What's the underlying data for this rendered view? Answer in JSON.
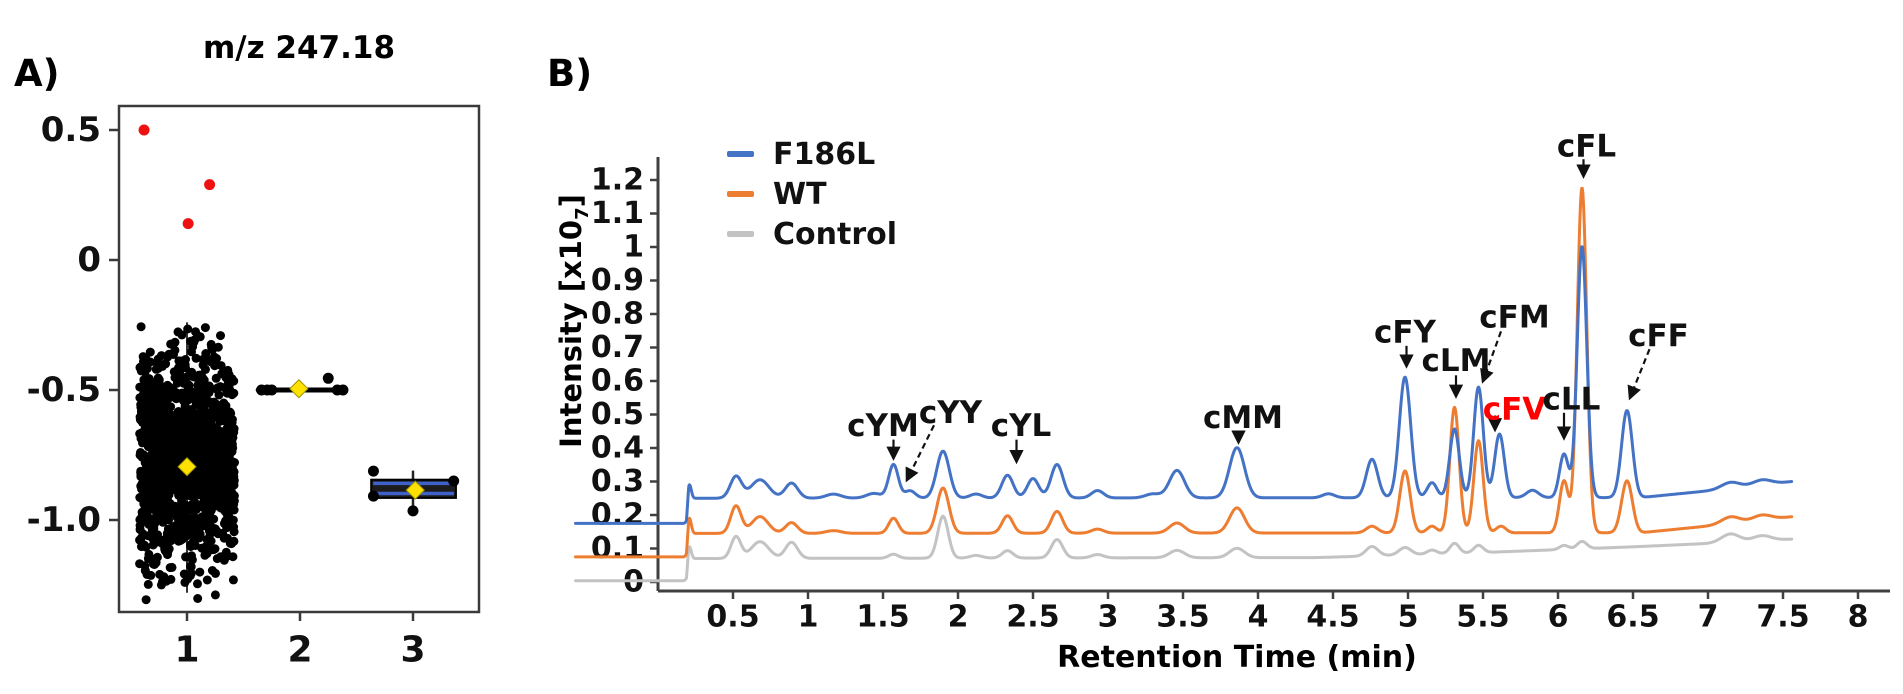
{
  "figure": {
    "panel_a_label": "A)",
    "panel_b_label": "B)",
    "panel_b_ylabel_parts": {
      "main": "Intensity  [x10",
      "sub": "7",
      "close": "]"
    },
    "colors": {
      "panel_border": "#3a3a3a",
      "axis": "#404040",
      "text": "#111111"
    }
  },
  "chart_data": [
    {
      "type": "scatter",
      "title": "m/z 247.18",
      "xlabel": "",
      "ylabel": "",
      "xlim": [
        0.4,
        3.6
      ],
      "ylim": [
        -1.35,
        0.6
      ],
      "grid": false,
      "x_ticks": [
        1,
        2,
        3
      ],
      "x_tick_labels": [
        "1",
        "2",
        "3"
      ],
      "y_ticks": [
        0.5,
        0,
        -0.5,
        -1.0
      ],
      "y_tick_labels": [
        "0.5",
        "0",
        "-0.5",
        "-1.0"
      ],
      "colors": {
        "points": "#000000",
        "outliers": "#ee1111",
        "mean_marker": "#ffe100",
        "box_line": "#3f62c9"
      },
      "groups": [
        {
          "x": 1,
          "style": "jitter_cloud",
          "n_points": 1400,
          "mean": -0.78,
          "sd": 0.2,
          "range": [
            -1.31,
            -0.225
          ],
          "jitter": 0.42,
          "center_line_v": [
            -0.24,
            -1.28
          ],
          "mean_marker": [
            1.0,
            -0.795
          ],
          "outliers_red": [
            [
              0.62,
              0.5
            ],
            [
              1.2,
              0.29
            ],
            [
              1.01,
              0.14
            ]
          ]
        },
        {
          "x": 2,
          "style": "line_cluster",
          "line_v": -0.5,
          "line_x": [
            1.63,
            2.39
          ],
          "points": [
            [
              1.66,
              -0.5
            ],
            [
              1.71,
              -0.5
            ],
            [
              1.75,
              -0.5
            ],
            [
              2.33,
              -0.5
            ],
            [
              2.38,
              -0.5
            ],
            [
              2.25,
              -0.455
            ]
          ],
          "mean_marker": [
            1.99,
            -0.495
          ]
        },
        {
          "x": 3,
          "style": "box",
          "box_x": [
            2.63,
            3.38
          ],
          "box_v": [
            -0.915,
            -0.845
          ],
          "median_lines": [
            -0.859,
            -0.898
          ],
          "whisker_x": 3.0,
          "whisker_v": [
            -0.975,
            -0.81
          ],
          "points": [
            [
              2.65,
              -0.812
            ],
            [
              2.65,
              -0.908
            ],
            [
              3.36,
              -0.85
            ],
            [
              3.0,
              -0.965
            ]
          ],
          "mean_marker": [
            3.02,
            -0.885
          ]
        }
      ]
    },
    {
      "type": "line",
      "title": "",
      "xlabel": "Retention Time (min)",
      "ylabel": "Intensity [x10₇]",
      "xlim": [
        0,
        8.2
      ],
      "ylim": [
        0,
        1.27
      ],
      "grid": false,
      "legend_position": "upper-left-inside",
      "x_ticks": [
        0.5,
        1,
        1.5,
        2,
        2.5,
        3,
        3.5,
        4,
        4.5,
        5,
        5.5,
        6,
        6.5,
        7,
        7.5,
        8
      ],
      "x_tick_labels": [
        "0.5",
        "1",
        "1.5",
        "2",
        "2.5",
        "3",
        "3.5",
        "4",
        "4.5",
        "5",
        "5.5",
        "6",
        "6.5",
        "7",
        "7.5",
        "8"
      ],
      "y_ticks": [
        0,
        0.1,
        0.2,
        0.3,
        0.4,
        0.5,
        0.6,
        0.7,
        0.8,
        0.9,
        1.0,
        1.1,
        1.2
      ],
      "y_tick_labels": [
        "0",
        "0.1",
        "0.2",
        "0.3",
        "0.4",
        "0.5",
        "0.6",
        "0.7",
        "0.8",
        "0.9",
        "1",
        "1.1",
        "1.2"
      ],
      "t_range": [
        -0.55,
        7.56
      ],
      "series": [
        {
          "name": "F186L",
          "color": "#4472C4",
          "baseline": [
            [
              -0.55,
              0.175
            ],
            [
              0.19,
              0.175
            ],
            [
              0.205,
              0.25
            ],
            [
              6.55,
              0.252
            ],
            [
              7.0,
              0.272
            ],
            [
              7.56,
              0.3
            ]
          ],
          "peaks": [
            [
              0.21,
              0.04,
              0.012
            ],
            [
              0.52,
              0.065,
              0.038
            ],
            [
              0.68,
              0.055,
              0.06
            ],
            [
              0.89,
              0.045,
              0.042
            ],
            [
              1.17,
              0.012,
              0.05
            ],
            [
              1.44,
              0.014,
              0.05
            ],
            [
              1.57,
              0.1,
              0.032
            ],
            [
              1.68,
              0.022,
              0.035
            ],
            [
              1.9,
              0.14,
              0.042
            ],
            [
              2.12,
              0.012,
              0.04
            ],
            [
              2.33,
              0.068,
              0.038
            ],
            [
              2.5,
              0.058,
              0.038
            ],
            [
              2.66,
              0.1,
              0.04
            ],
            [
              2.93,
              0.022,
              0.04
            ],
            [
              3.3,
              0.012,
              0.05
            ],
            [
              3.46,
              0.082,
              0.05
            ],
            [
              3.86,
              0.15,
              0.05
            ],
            [
              4.47,
              0.012,
              0.04
            ],
            [
              4.76,
              0.115,
              0.038
            ],
            [
              4.98,
              0.36,
              0.038
            ],
            [
              5.16,
              0.045,
              0.032
            ],
            [
              5.31,
              0.205,
              0.032
            ],
            [
              5.47,
              0.33,
              0.032
            ],
            [
              5.61,
              0.19,
              0.032
            ],
            [
              5.83,
              0.022,
              0.04
            ],
            [
              6.04,
              0.13,
              0.03
            ],
            [
              6.16,
              0.75,
              0.032
            ],
            [
              6.46,
              0.26,
              0.036
            ],
            [
              7.15,
              0.018,
              0.06
            ],
            [
              7.36,
              0.015,
              0.06
            ]
          ]
        },
        {
          "name": "WT",
          "color": "#ED7D31",
          "baseline": [
            [
              -0.55,
              0.075
            ],
            [
              0.19,
              0.075
            ],
            [
              0.205,
              0.145
            ],
            [
              6.55,
              0.147
            ],
            [
              7.0,
              0.167
            ],
            [
              7.56,
              0.195
            ]
          ],
          "peaks": [
            [
              0.21,
              0.045,
              0.012
            ],
            [
              0.52,
              0.082,
              0.035
            ],
            [
              0.68,
              0.05,
              0.055
            ],
            [
              0.89,
              0.032,
              0.04
            ],
            [
              1.17,
              0.008,
              0.05
            ],
            [
              1.57,
              0.045,
              0.032
            ],
            [
              1.9,
              0.135,
              0.04
            ],
            [
              2.33,
              0.052,
              0.036
            ],
            [
              2.66,
              0.065,
              0.038
            ],
            [
              2.93,
              0.012,
              0.04
            ],
            [
              3.46,
              0.03,
              0.05
            ],
            [
              3.86,
              0.075,
              0.05
            ],
            [
              4.76,
              0.02,
              0.038
            ],
            [
              4.98,
              0.185,
              0.035
            ],
            [
              5.16,
              0.02,
              0.032
            ],
            [
              5.31,
              0.375,
              0.031
            ],
            [
              5.47,
              0.275,
              0.031
            ],
            [
              5.62,
              0.02,
              0.032
            ],
            [
              6.04,
              0.155,
              0.03
            ],
            [
              6.16,
              1.03,
              0.032
            ],
            [
              6.46,
              0.155,
              0.036
            ],
            [
              7.15,
              0.02,
              0.06
            ],
            [
              7.36,
              0.015,
              0.06
            ]
          ]
        },
        {
          "name": "Control",
          "color": "#C3C3C3",
          "baseline": [
            [
              -0.55,
              0.004
            ],
            [
              0.19,
              0.004
            ],
            [
              0.205,
              0.07
            ],
            [
              4.4,
              0.073
            ],
            [
              5.5,
              0.088
            ],
            [
              6.5,
              0.105
            ],
            [
              7.0,
              0.115
            ],
            [
              7.56,
              0.128
            ]
          ],
          "peaks": [
            [
              0.21,
              0.035,
              0.012
            ],
            [
              0.52,
              0.065,
              0.033
            ],
            [
              0.68,
              0.05,
              0.058
            ],
            [
              0.89,
              0.048,
              0.04
            ],
            [
              1.57,
              0.012,
              0.032
            ],
            [
              1.9,
              0.125,
              0.035
            ],
            [
              2.12,
              0.008,
              0.04
            ],
            [
              2.33,
              0.022,
              0.036
            ],
            [
              2.66,
              0.055,
              0.038
            ],
            [
              2.93,
              0.01,
              0.04
            ],
            [
              3.46,
              0.022,
              0.05
            ],
            [
              3.86,
              0.028,
              0.05
            ],
            [
              4.76,
              0.028,
              0.04
            ],
            [
              4.98,
              0.022,
              0.04
            ],
            [
              5.16,
              0.012,
              0.032
            ],
            [
              5.31,
              0.03,
              0.031
            ],
            [
              5.47,
              0.022,
              0.031
            ],
            [
              6.04,
              0.012,
              0.03
            ],
            [
              6.16,
              0.022,
              0.032
            ],
            [
              7.15,
              0.025,
              0.06
            ],
            [
              7.36,
              0.015,
              0.06
            ]
          ]
        }
      ],
      "annotations": [
        {
          "label": "cYM",
          "color": "#111111",
          "t": 1.5,
          "v": 0.465,
          "arrow": {
            "t1": 1.57,
            "v1": 0.425,
            "t2": 1.57,
            "v2": 0.37,
            "style": "solid"
          }
        },
        {
          "label": "cYY",
          "color": "#111111",
          "t": 1.95,
          "v": 0.505,
          "arrow": {
            "t1": 1.84,
            "v1": 0.468,
            "t2": 1.66,
            "v2": 0.305,
            "style": "dashed"
          }
        },
        {
          "label": "cYL",
          "color": "#111111",
          "t": 2.42,
          "v": 0.465,
          "arrow": {
            "t1": 2.39,
            "v1": 0.425,
            "t2": 2.39,
            "v2": 0.36,
            "style": "solid"
          }
        },
        {
          "label": "cMM",
          "color": "#111111",
          "t": 3.9,
          "v": 0.49,
          "arrow": {
            "t1": 3.87,
            "v1": 0.452,
            "t2": 3.87,
            "v2": 0.418,
            "style": "solid"
          }
        },
        {
          "label": "cFY",
          "color": "#111111",
          "t": 4.98,
          "v": 0.745,
          "arrow": {
            "t1": 4.99,
            "v1": 0.705,
            "t2": 4.99,
            "v2": 0.645,
            "style": "solid"
          }
        },
        {
          "label": "cLM",
          "color": "#111111",
          "t": 5.32,
          "v": 0.66,
          "arrow": {
            "t1": 5.32,
            "v1": 0.617,
            "t2": 5.32,
            "v2": 0.555,
            "style": "solid"
          }
        },
        {
          "label": "cFM",
          "color": "#111111",
          "t": 5.71,
          "v": 0.79,
          "arrow": {
            "t1": 5.62,
            "v1": 0.748,
            "t2": 5.5,
            "v2": 0.6,
            "style": "dashed"
          }
        },
        {
          "label": "cFV",
          "color": "#ff0000",
          "t": 5.71,
          "v": 0.515,
          "arrow": {
            "t1": 5.58,
            "v1": 0.497,
            "t2": 5.58,
            "v2": 0.455,
            "style": "solid"
          }
        },
        {
          "label": "cLL",
          "color": "#111111",
          "t": 6.09,
          "v": 0.545,
          "arrow": {
            "t1": 6.04,
            "v1": 0.505,
            "t2": 6.04,
            "v2": 0.43,
            "style": "solid"
          }
        },
        {
          "label": "cFL",
          "color": "#111111",
          "t": 6.19,
          "v": 1.3,
          "arrow": {
            "t1": 6.17,
            "v1": 1.262,
            "t2": 6.17,
            "v2": 1.212,
            "style": "solid"
          }
        },
        {
          "label": "cFF",
          "color": "#111111",
          "t": 6.67,
          "v": 0.735,
          "arrow": {
            "t1": 6.61,
            "v1": 0.695,
            "t2": 6.48,
            "v2": 0.55,
            "style": "dashed"
          }
        }
      ]
    }
  ]
}
